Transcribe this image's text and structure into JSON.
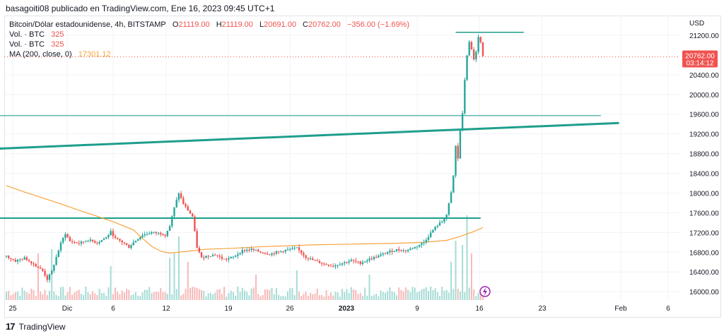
{
  "header": {
    "publish_line": "basagoiti08 publicado en TradingView.com, Ene 16, 2023 09:45 UTC+1"
  },
  "legend": {
    "symbol": "Bitcoin/Dólar estadounidense, 4h, BITSTAMP",
    "o_label": "O",
    "o_value": "21119.00",
    "h_label": "H",
    "h_value": "21119.00",
    "l_label": "L",
    "l_value": "20691.00",
    "c_label": "C",
    "c_value": "20762.00",
    "change": "−356.00 (−1.69%)",
    "vol1_label": "Vol. · BTC",
    "vol1_value": "325",
    "vol2_label": "Vol. · BTC",
    "vol2_value": "325",
    "ma_label": "MA (200, close, 0)",
    "ma_value": "17301.12"
  },
  "footer": {
    "brand": "TradingView",
    "logo_mark": "17"
  },
  "colors": {
    "up": "#26a69a",
    "down": "#ef5350",
    "ma": "#f7a33b",
    "line": "#1e9e8c",
    "vol_up": "#a6dcd5",
    "vol_down": "#f6b9b7",
    "grid": "#f0f3fa",
    "text": "#131722",
    "price_tag": "#ef5350",
    "accent_icon": "#9c27b0"
  },
  "chart_data": {
    "type": "candlestick",
    "symbol": "BTCUSD",
    "timeframe": "4h",
    "exchange": "BITSTAMP",
    "y_axis": {
      "unit": "USD",
      "ticks": [
        16000,
        16400,
        16800,
        17200,
        17600,
        18000,
        18400,
        18800,
        19200,
        19600,
        20000,
        20400,
        21200
      ],
      "range": [
        15830,
        21600
      ]
    },
    "x_axis": {
      "ticks": [
        "25",
        "Dic",
        "6",
        "12",
        "19",
        "26",
        "2023",
        "9",
        "16",
        "23",
        "Feb",
        "6"
      ]
    },
    "last_price": {
      "value": "20762.00",
      "countdown": "03:14:12"
    },
    "price_path": [
      [
        0,
        16720
      ],
      [
        4,
        16620
      ],
      [
        8,
        16680
      ],
      [
        12,
        16560
      ],
      [
        16,
        16420
      ],
      [
        18,
        16250
      ],
      [
        20,
        16410
      ],
      [
        22,
        16700
      ],
      [
        24,
        16980
      ],
      [
        26,
        17180
      ],
      [
        28,
        17020
      ],
      [
        32,
        16980
      ],
      [
        36,
        17050
      ],
      [
        40,
        16990
      ],
      [
        44,
        17100
      ],
      [
        46,
        17210
      ],
      [
        48,
        17080
      ],
      [
        52,
        16980
      ],
      [
        54,
        16900
      ],
      [
        56,
        17000
      ],
      [
        60,
        17150
      ],
      [
        64,
        17200
      ],
      [
        68,
        17180
      ],
      [
        70,
        17150
      ],
      [
        72,
        17330
      ],
      [
        74,
        17700
      ],
      [
        76,
        18000
      ],
      [
        78,
        17780
      ],
      [
        80,
        17650
      ],
      [
        82,
        17520
      ],
      [
        84,
        16900
      ],
      [
        86,
        16680
      ],
      [
        88,
        16720
      ],
      [
        92,
        16750
      ],
      [
        96,
        16650
      ],
      [
        100,
        16700
      ],
      [
        104,
        16830
      ],
      [
        108,
        16860
      ],
      [
        112,
        16800
      ],
      [
        116,
        16760
      ],
      [
        120,
        16810
      ],
      [
        124,
        16850
      ],
      [
        128,
        16880
      ],
      [
        132,
        16700
      ],
      [
        136,
        16620
      ],
      [
        140,
        16560
      ],
      [
        144,
        16520
      ],
      [
        148,
        16580
      ],
      [
        152,
        16630
      ],
      [
        156,
        16580
      ],
      [
        160,
        16660
      ],
      [
        164,
        16720
      ],
      [
        168,
        16800
      ],
      [
        172,
        16850
      ],
      [
        176,
        16830
      ],
      [
        180,
        16900
      ],
      [
        184,
        17000
      ],
      [
        188,
        17250
      ],
      [
        190,
        17350
      ],
      [
        192,
        17420
      ],
      [
        194,
        17560
      ],
      [
        196,
        18000
      ],
      [
        197,
        18350
      ],
      [
        198,
        18950
      ],
      [
        199,
        18700
      ],
      [
        200,
        19300
      ],
      [
        201,
        19600
      ],
      [
        202,
        20300
      ],
      [
        203,
        20800
      ],
      [
        204,
        21050
      ],
      [
        205,
        20900
      ],
      [
        206,
        20720
      ],
      [
        207,
        20850
      ],
      [
        208,
        21150
      ],
      [
        209,
        21050
      ],
      [
        210,
        20762
      ]
    ],
    "ma": {
      "name": "MA (200, close, 0)",
      "points": [
        [
          0,
          18150
        ],
        [
          8,
          18020
        ],
        [
          16,
          17900
        ],
        [
          24,
          17780
        ],
        [
          32,
          17650
        ],
        [
          40,
          17530
        ],
        [
          48,
          17400
        ],
        [
          56,
          17250
        ],
        [
          60,
          17080
        ],
        [
          64,
          16920
        ],
        [
          68,
          16820
        ],
        [
          72,
          16780
        ],
        [
          80,
          16820
        ],
        [
          88,
          16860
        ],
        [
          100,
          16880
        ],
        [
          112,
          16910
        ],
        [
          124,
          16930
        ],
        [
          136,
          16950
        ],
        [
          148,
          16960
        ],
        [
          160,
          16970
        ],
        [
          172,
          16980
        ],
        [
          184,
          17000
        ],
        [
          194,
          17040
        ],
        [
          200,
          17120
        ],
        [
          206,
          17220
        ],
        [
          210,
          17301.12
        ]
      ]
    },
    "volume": {
      "max_index": 210,
      "spikes": [
        [
          14,
          0.55
        ],
        [
          20,
          0.6
        ],
        [
          46,
          0.4
        ],
        [
          72,
          0.5
        ],
        [
          74,
          0.55
        ],
        [
          76,
          0.75
        ],
        [
          80,
          0.45
        ],
        [
          110,
          0.3
        ],
        [
          128,
          0.35
        ],
        [
          160,
          0.3
        ],
        [
          196,
          0.45
        ],
        [
          198,
          0.7
        ],
        [
          201,
          0.65
        ],
        [
          203,
          1.0
        ],
        [
          205,
          0.55
        ]
      ]
    },
    "lines": [
      {
        "name": "trendline",
        "x1": -30,
        "y1": 18850,
        "x2": 270,
        "y2": 19420
      },
      {
        "name": "resistance",
        "x1": -30,
        "y1": 19570,
        "x2": 262,
        "y2": 19570
      },
      {
        "name": "support",
        "x1": -30,
        "y1": 17490,
        "x2": 209,
        "y2": 17490
      },
      {
        "name": "top-line",
        "x1": 198,
        "y1": 21260,
        "x2": 228,
        "y2": 21260
      }
    ]
  }
}
